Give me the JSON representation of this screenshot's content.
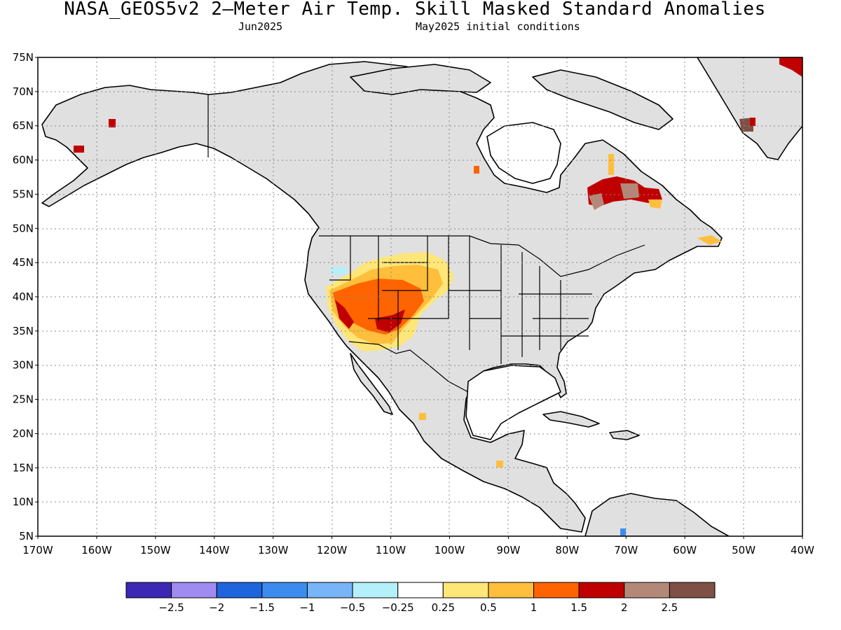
{
  "title": "NASA_GEOS5v2 2–Meter Air Temp. Skill Masked Standard Anomalies",
  "subtitle_left": "Jun2025",
  "subtitle_right": "May2025 initial conditions",
  "map": {
    "lat_labels": [
      "75N",
      "70N",
      "65N",
      "60N",
      "55N",
      "50N",
      "45N",
      "40N",
      "35N",
      "30N",
      "25N",
      "20N",
      "15N",
      "10N",
      "5N"
    ],
    "lon_labels": [
      "170W",
      "160W",
      "150W",
      "140W",
      "130W",
      "120W",
      "110W",
      "100W",
      "90W",
      "80W",
      "70W",
      "60W",
      "50W",
      "40W"
    ],
    "masked_color": "#e0e0e0",
    "land_outline_color": "#000000",
    "anomaly_regions": [
      {
        "region": "US Southwest / Great Basin",
        "category": "1 to 1.5"
      },
      {
        "region": "Quebec / Labrador",
        "category": "1.5 to 2"
      },
      {
        "region": "Greenland",
        "category": "2 to 2.5"
      }
    ]
  },
  "colorbar": {
    "colors": [
      "#3c28b4",
      "#a08cf0",
      "#1e64dc",
      "#3c8cf0",
      "#78b4f8",
      "#b4f0fa",
      "#ffffff",
      "#ffe678",
      "#ffbe3c",
      "#ff6400",
      "#c00000",
      "#b48878",
      "#7f5046"
    ],
    "labels": [
      "−2.5",
      "−2",
      "−1.5",
      "−1",
      "−0.5",
      "−0.25",
      "0.25",
      "0.5",
      "1",
      "1.5",
      "2",
      "2.5"
    ]
  }
}
